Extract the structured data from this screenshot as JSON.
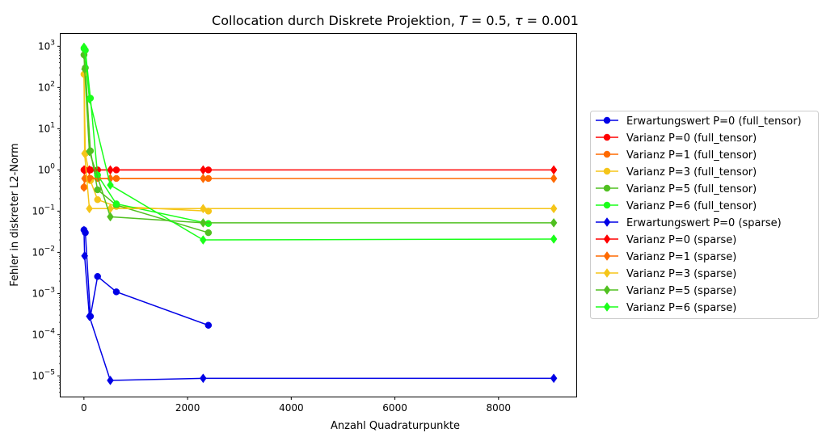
{
  "chart_data": {
    "type": "line",
    "title": "Collocation durch Diskrete Projektion, T = 0.5, τ = 0.001",
    "title_parts": {
      "prefix": "Collocation durch Diskrete Projektion, ",
      "T_symbol": "T",
      "T_value": " = 0.5, ",
      "tau_symbol": "τ",
      "tau_value": " = 0.001"
    },
    "xlabel": "Anzahl Quadraturpunkte",
    "ylabel": "Fehler in diskreter L2-Norm",
    "xlim": [
      -450,
      9500
    ],
    "ylim_log10": [
      -5.5,
      3.3
    ],
    "yscale": "log",
    "grid": false,
    "legend_position": "right",
    "x_ticks": [
      {
        "value": 0,
        "label": "0"
      },
      {
        "value": 2000,
        "label": "2000"
      },
      {
        "value": 4000,
        "label": "4000"
      },
      {
        "value": 6000,
        "label": "6000"
      },
      {
        "value": 8000,
        "label": "8000"
      }
    ],
    "y_ticks": [
      {
        "exp": 3,
        "base": "10",
        "sup": "3"
      },
      {
        "exp": 2,
        "base": "10",
        "sup": "2"
      },
      {
        "exp": 1,
        "base": "10",
        "sup": "1"
      },
      {
        "exp": 0,
        "base": "10",
        "sup": "0"
      },
      {
        "exp": -1,
        "base": "10",
        "sup": "−1"
      },
      {
        "exp": -2,
        "base": "10",
        "sup": "−2"
      },
      {
        "exp": -3,
        "base": "10",
        "sup": "−3"
      },
      {
        "exp": -4,
        "base": "10",
        "sup": "−4"
      },
      {
        "exp": -5,
        "base": "10",
        "sup": "−5"
      }
    ],
    "series": [
      {
        "name": "Erwartungswert P=0 (full_tensor)",
        "color": "#0000e6",
        "marker": "circle",
        "points": [
          [
            1,
            0.035
          ],
          [
            27,
            0.03
          ],
          [
            125,
            0.00028
          ],
          [
            263,
            0.0026
          ],
          [
            625,
            0.0011
          ],
          [
            2401,
            0.00017
          ]
        ]
      },
      {
        "name": "Varianz P=0 (full_tensor)",
        "color": "#ff0000",
        "marker": "circle",
        "points": [
          [
            1,
            1.0
          ],
          [
            27,
            1.0
          ],
          [
            125,
            1.0
          ],
          [
            263,
            1.0
          ],
          [
            625,
            1.0
          ],
          [
            2401,
            1.0
          ]
        ]
      },
      {
        "name": "Varianz P=1 (full_tensor)",
        "color": "#ff6a00",
        "marker": "circle",
        "points": [
          [
            1,
            0.38
          ],
          [
            27,
            0.62
          ],
          [
            125,
            0.62
          ],
          [
            263,
            0.62
          ],
          [
            625,
            0.62
          ],
          [
            2401,
            0.62
          ]
        ]
      },
      {
        "name": "Varianz P=3 (full_tensor)",
        "color": "#f5c518",
        "marker": "circle",
        "points": [
          [
            1,
            210
          ],
          [
            27,
            2.5
          ],
          [
            125,
            0.55
          ],
          [
            263,
            0.19
          ],
          [
            625,
            0.13
          ],
          [
            2401,
            0.1
          ]
        ]
      },
      {
        "name": "Varianz P=5 (full_tensor)",
        "color": "#50c020",
        "marker": "circle",
        "points": [
          [
            1,
            620
          ],
          [
            27,
            300
          ],
          [
            125,
            2.9
          ],
          [
            263,
            0.33
          ],
          [
            625,
            0.14
          ],
          [
            2401,
            0.03
          ]
        ]
      },
      {
        "name": "Varianz P=6 (full_tensor)",
        "color": "#1aff1a",
        "marker": "circle",
        "points": [
          [
            1,
            880
          ],
          [
            27,
            800
          ],
          [
            125,
            55
          ],
          [
            263,
            0.75
          ],
          [
            625,
            0.15
          ],
          [
            2401,
            0.05
          ]
        ]
      },
      {
        "name": "Erwartungswert P=0 (sparse)",
        "color": "#0000e6",
        "marker": "diamond",
        "points": [
          [
            1,
            0.034
          ],
          [
            13,
            0.0082
          ],
          [
            105,
            0.00028
          ],
          [
            509,
            7.8e-06
          ],
          [
            2300,
            8.8e-06
          ],
          [
            9065,
            8.8e-06
          ]
        ]
      },
      {
        "name": "Varianz P=0 (sparse)",
        "color": "#ff0000",
        "marker": "diamond",
        "points": [
          [
            1,
            1.0
          ],
          [
            13,
            1.0
          ],
          [
            105,
            1.0
          ],
          [
            509,
            1.0
          ],
          [
            2300,
            1.0
          ],
          [
            9065,
            1.0
          ]
        ]
      },
      {
        "name": "Varianz P=1 (sparse)",
        "color": "#ff6a00",
        "marker": "diamond",
        "points": [
          [
            1,
            0.38
          ],
          [
            13,
            0.62
          ],
          [
            105,
            0.62
          ],
          [
            509,
            0.62
          ],
          [
            2300,
            0.62
          ],
          [
            9065,
            0.62
          ]
        ]
      },
      {
        "name": "Varianz P=3 (sparse)",
        "color": "#f5c518",
        "marker": "diamond",
        "points": [
          [
            1,
            210
          ],
          [
            13,
            2.5
          ],
          [
            105,
            0.115
          ],
          [
            509,
            0.115
          ],
          [
            2300,
            0.115
          ],
          [
            9065,
            0.115
          ]
        ]
      },
      {
        "name": "Varianz P=5 (sparse)",
        "color": "#50c020",
        "marker": "diamond",
        "points": [
          [
            1,
            620
          ],
          [
            13,
            280
          ],
          [
            105,
            2.8
          ],
          [
            509,
            0.073
          ],
          [
            2300,
            0.052
          ],
          [
            9065,
            0.052
          ]
        ]
      },
      {
        "name": "Varianz P=6 (sparse)",
        "color": "#1aff1a",
        "marker": "diamond",
        "points": [
          [
            1,
            950
          ],
          [
            13,
            850
          ],
          [
            105,
            53
          ],
          [
            509,
            0.43
          ],
          [
            2300,
            0.02
          ],
          [
            9065,
            0.021
          ]
        ]
      }
    ]
  }
}
